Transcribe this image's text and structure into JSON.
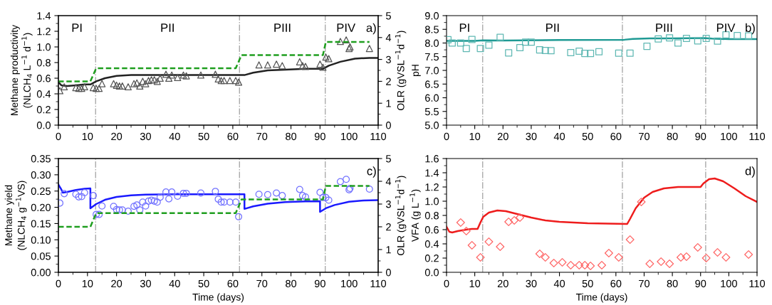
{
  "chart_data": [
    {
      "type": "line",
      "ylabel": "Methane productivity\n(NLCH$_{4}$ L$^{−1}$ d$^{−1}$)",
      "y2label": "OLR (gVSL$^{−1}$d$^{−1}$)",
      "xlim": [
        0,
        110
      ],
      "xticks": [
        0,
        10,
        20,
        30,
        40,
        50,
        60,
        70,
        80,
        90,
        100,
        110
      ],
      "ylim": [
        0,
        1.4
      ],
      "yticks": [
        {
          "value": 0,
          "label": "0.0"
        },
        0.2,
        0.4,
        0.6,
        0.8,
        {
          "value": 1,
          "label": "1.0"
        },
        1.2,
        1.4
      ],
      "y2lim": [
        0,
        5
      ],
      "y2ticks": [
        0,
        1,
        2,
        3,
        4,
        5
      ],
      "grid": false,
      "series": [
        {
          "type": "scatter",
          "marker": "triangle",
          "color": "#555555",
          "x": [
            0.5,
            2,
            6,
            7,
            8,
            9,
            12,
            13,
            14,
            15,
            19,
            20,
            21,
            22,
            24,
            26,
            27,
            28,
            29,
            30,
            31,
            32,
            33,
            34,
            35,
            37,
            38,
            39,
            41,
            43,
            44,
            49,
            54,
            55,
            56,
            57,
            59,
            61,
            62,
            69,
            72,
            75,
            77,
            83,
            84,
            85,
            90,
            91,
            92,
            93,
            97,
            99,
            100,
            100.3,
            107
          ],
          "values": [
            0.44,
            0.49,
            0.48,
            0.47,
            0.47,
            0.49,
            0.48,
            0.47,
            0.47,
            0.53,
            0.53,
            0.51,
            0.5,
            0.5,
            0.49,
            0.53,
            0.54,
            0.5,
            0.56,
            0.53,
            0.57,
            0.58,
            0.58,
            0.56,
            0.6,
            0.65,
            0.6,
            0.64,
            0.61,
            0.64,
            0.63,
            0.64,
            0.65,
            0.59,
            0.57,
            0.57,
            0.57,
            0.57,
            0.55,
            0.77,
            0.77,
            0.78,
            0.76,
            0.81,
            0.76,
            0.75,
            0.78,
            0.74,
            0.87,
            0.85,
            1.07,
            1.09,
            0.98,
            1.0,
            0.98
          ]
        },
        {
          "line_style": "solid",
          "color": "#222222",
          "x": [
            0,
            1,
            3,
            6,
            9,
            11,
            13,
            16,
            20,
            25,
            30,
            62,
            64,
            67,
            72,
            78,
            85,
            91,
            93,
            97,
            102,
            107,
            110
          ],
          "values": [
            0.55,
            0.51,
            0.5,
            0.51,
            0.52,
            0.52,
            0.56,
            0.6,
            0.63,
            0.64,
            0.64,
            0.64,
            0.64,
            0.67,
            0.7,
            0.71,
            0.72,
            0.72,
            0.76,
            0.81,
            0.85,
            0.86,
            0.86
          ]
        },
        {
          "type": "line",
          "line_style": "dashed",
          "axis": "y2",
          "color": "#1f9e1f",
          "x": [
            0,
            11,
            13,
            61,
            63,
            91,
            92,
            107
          ],
          "values": [
            2.0,
            2.0,
            2.6,
            2.6,
            3.2,
            3.2,
            3.8,
            3.8
          ]
        }
      ],
      "ref_lines": [
        {
          "axis": "x",
          "value": 12.8,
          "color": "#aaaaaa",
          "line_style": "dashdot"
        },
        {
          "axis": "x",
          "value": 62.3,
          "color": "#aaaaaa",
          "line_style": "dashdot"
        },
        {
          "axis": "x",
          "value": 91.8,
          "color": "#aaaaaa",
          "line_style": "dashdot"
        }
      ],
      "annotations": [
        "a)",
        "PI",
        "PII",
        "PIII",
        "PIV"
      ]
    },
    {
      "type": "line",
      "ylabel": "pH",
      "xlim": [
        0,
        110
      ],
      "xticks": [
        0,
        10,
        20,
        30,
        40,
        50,
        60,
        70,
        80,
        90,
        100,
        110
      ],
      "ylim": [
        5,
        9
      ],
      "yticks": [
        {
          "value": 5,
          "label": "5.0"
        },
        5.5,
        {
          "value": 6,
          "label": "6.0"
        },
        6.5,
        {
          "value": 7,
          "label": "7.0"
        },
        7.5,
        {
          "value": 8,
          "label": "8.0"
        },
        8.5,
        {
          "value": 9,
          "label": "9.0"
        }
      ],
      "grid": false,
      "series": [
        {
          "type": "scatter",
          "marker": "square",
          "color": "#5fb8b3",
          "x": [
            0.5,
            2,
            5,
            7,
            9,
            12,
            15,
            19,
            22,
            26,
            28,
            30,
            33,
            35,
            37,
            44,
            47,
            49,
            51,
            54,
            61,
            65,
            71,
            75,
            79,
            82,
            85,
            89,
            92,
            96,
            99,
            103,
            107
          ],
          "values": [
            8.12,
            8.0,
            8.0,
            7.8,
            8.13,
            7.8,
            7.92,
            8.21,
            7.64,
            7.83,
            8.03,
            8.03,
            7.75,
            7.73,
            7.72,
            7.65,
            7.7,
            7.62,
            7.62,
            7.68,
            7.63,
            7.63,
            7.88,
            8.15,
            8.19,
            8.0,
            8.17,
            8.08,
            8.17,
            8.07,
            8.3,
            8.27,
            8.26
          ]
        },
        {
          "line_style": "solid",
          "color": "#1f9a94",
          "x": [
            0,
            10,
            13,
            20,
            40,
            63,
            66,
            72,
            80,
            91,
            94,
            100,
            110
          ],
          "values": [
            8.08,
            8.08,
            8.1,
            8.09,
            8.11,
            8.12,
            8.15,
            8.17,
            8.17,
            8.18,
            8.16,
            8.14,
            8.14
          ]
        }
      ],
      "ref_lines": [
        {
          "axis": "x",
          "value": 12.8,
          "color": "#aaaaaa",
          "line_style": "dashdot"
        },
        {
          "axis": "x",
          "value": 62.3,
          "color": "#aaaaaa",
          "line_style": "dashdot"
        },
        {
          "axis": "x",
          "value": 91.8,
          "color": "#aaaaaa",
          "line_style": "dashdot"
        }
      ],
      "annotations": [
        "b)",
        "PI",
        "PII",
        "PIII",
        "PIV"
      ]
    },
    {
      "type": "line",
      "xlabel": "Time (days)",
      "ylabel": "Methane yield\n(NLCH$_{4}$ g$^{−1}$VS)",
      "y2label": "OLR (gVSL$^{−1}$d$^{−1}$)",
      "xlim": [
        0,
        110
      ],
      "xticks": [
        0,
        10,
        20,
        30,
        40,
        50,
        60,
        70,
        80,
        90,
        100,
        110
      ],
      "ylim": [
        0,
        0.35
      ],
      "yticks": [
        {
          "value": 0,
          "label": "0.00"
        },
        {
          "value": 0.05,
          "label": "0.05"
        },
        {
          "value": 0.1,
          "label": "0.10"
        },
        {
          "value": 0.15,
          "label": "0.15"
        },
        {
          "value": 0.2,
          "label": "0.20"
        },
        {
          "value": 0.25,
          "label": "0.25"
        },
        {
          "value": 0.3,
          "label": "0.30"
        },
        {
          "value": 0.35,
          "label": "0.35"
        }
      ],
      "y2lim": [
        0,
        5
      ],
      "y2ticks": [
        0,
        1,
        2,
        3,
        4,
        5
      ],
      "grid": false,
      "series": [
        {
          "type": "scatter",
          "marker": "circle",
          "color": "#7373ff",
          "x": [
            0.5,
            2,
            6,
            7,
            8,
            9,
            12,
            13,
            14,
            15,
            19,
            20,
            21,
            22,
            24,
            26,
            27,
            28,
            29,
            30,
            31,
            32,
            33,
            34,
            35,
            37,
            38,
            39,
            41,
            43,
            44,
            49,
            54,
            55,
            56,
            57,
            59,
            61,
            62,
            69,
            72,
            75,
            77,
            83,
            84,
            85,
            90,
            91,
            92,
            93,
            97,
            99,
            100,
            100.3,
            107
          ],
          "values": [
            0.213,
            0.242,
            0.24,
            0.232,
            0.233,
            0.245,
            0.236,
            0.178,
            0.178,
            0.204,
            0.203,
            0.193,
            0.192,
            0.192,
            0.188,
            0.203,
            0.207,
            0.192,
            0.216,
            0.204,
            0.219,
            0.222,
            0.219,
            0.216,
            0.231,
            0.247,
            0.226,
            0.247,
            0.234,
            0.243,
            0.243,
            0.244,
            0.249,
            0.225,
            0.216,
            0.216,
            0.216,
            0.216,
            0.171,
            0.24,
            0.239,
            0.244,
            0.236,
            0.255,
            0.236,
            0.232,
            0.246,
            0.23,
            0.23,
            0.222,
            0.279,
            0.286,
            0.254,
            0.258,
            0.256
          ]
        },
        {
          "line_style": "solid",
          "color": "#1a1aff",
          "x": [
            0,
            1,
            1.5,
            3,
            6,
            9,
            11,
            11,
            13,
            16,
            20,
            25,
            30,
            40,
            64,
            64,
            67,
            72,
            78,
            85,
            90,
            90,
            92,
            95,
            100,
            105,
            110
          ],
          "values": [
            0.27,
            0.255,
            0.245,
            0.247,
            0.253,
            0.257,
            0.258,
            0.197,
            0.21,
            0.223,
            0.232,
            0.237,
            0.239,
            0.24,
            0.24,
            0.195,
            0.203,
            0.211,
            0.216,
            0.218,
            0.219,
            0.186,
            0.197,
            0.207,
            0.217,
            0.221,
            0.222
          ]
        },
        {
          "type": "line",
          "line_style": "dashed",
          "axis": "y2",
          "color": "#1f9e1f",
          "x": [
            0,
            11,
            13,
            61,
            63,
            91,
            92,
            107
          ],
          "values": [
            2.0,
            2.0,
            2.6,
            2.6,
            3.2,
            3.2,
            3.8,
            3.8
          ]
        }
      ],
      "ref_lines": [
        {
          "axis": "x",
          "value": 12.8,
          "color": "#aaaaaa",
          "line_style": "dashdot"
        },
        {
          "axis": "x",
          "value": 62.3,
          "color": "#aaaaaa",
          "line_style": "dashdot"
        },
        {
          "axis": "x",
          "value": 91.8,
          "color": "#aaaaaa",
          "line_style": "dashdot"
        }
      ],
      "annotations": [
        "c)"
      ]
    },
    {
      "type": "line",
      "xlabel": "Time (days)",
      "ylabel": "VFA (g L$^{−1}$)",
      "xlim": [
        0,
        110
      ],
      "xticks": [
        0,
        10,
        20,
        30,
        40,
        50,
        60,
        70,
        80,
        90,
        100,
        110
      ],
      "ylim": [
        0,
        1.6
      ],
      "yticks": [
        {
          "value": 0,
          "label": "0.0"
        },
        0.2,
        0.4,
        0.6,
        0.8,
        {
          "value": 1,
          "label": "1.0"
        },
        1.2,
        1.4,
        1.6
      ],
      "grid": false,
      "series": [
        {
          "type": "scatter",
          "marker": "diamond",
          "color": "#ff6666",
          "x": [
            5,
            7,
            9,
            12,
            15,
            19,
            22,
            24,
            26,
            33,
            35,
            38,
            41,
            44,
            47,
            49,
            51,
            55,
            57.5,
            61,
            65,
            69,
            72,
            76,
            79,
            83,
            85,
            89,
            92,
            96,
            99,
            107
          ],
          "values": [
            0.7,
            0.58,
            0.38,
            0.21,
            0.43,
            0.36,
            0.71,
            0.73,
            0.77,
            0.26,
            0.21,
            0.13,
            0.14,
            0.1,
            0.1,
            0.1,
            0.09,
            0.1,
            0.27,
            0.21,
            0.46,
            0.99,
            0.12,
            0.15,
            0.12,
            0.21,
            0.22,
            0.35,
            0.2,
            0.28,
            0.21,
            0.25
          ]
        },
        {
          "line_style": "solid",
          "color": "#ee1c1c",
          "x": [
            0,
            1,
            2,
            4,
            7,
            9,
            11,
            12,
            13,
            15,
            18,
            21,
            25,
            30,
            35,
            40,
            50,
            64,
            65,
            67,
            70,
            73,
            77,
            82,
            90,
            91,
            93,
            95,
            98,
            102,
            106,
            110
          ],
          "values": [
            0.64,
            0.57,
            0.56,
            0.58,
            0.6,
            0.61,
            0.61,
            0.7,
            0.78,
            0.84,
            0.87,
            0.86,
            0.82,
            0.77,
            0.73,
            0.71,
            0.69,
            0.68,
            0.75,
            0.9,
            1.05,
            1.13,
            1.18,
            1.2,
            1.2,
            1.25,
            1.31,
            1.32,
            1.28,
            1.18,
            1.07,
            0.99
          ]
        }
      ],
      "ref_lines": [
        {
          "axis": "x",
          "value": 12.8,
          "color": "#aaaaaa",
          "line_style": "dashdot"
        },
        {
          "axis": "x",
          "value": 62.3,
          "color": "#aaaaaa",
          "line_style": "dashdot"
        },
        {
          "axis": "x",
          "value": 91.8,
          "color": "#aaaaaa",
          "line_style": "dashdot"
        }
      ],
      "annotations": [
        "d)"
      ]
    }
  ]
}
